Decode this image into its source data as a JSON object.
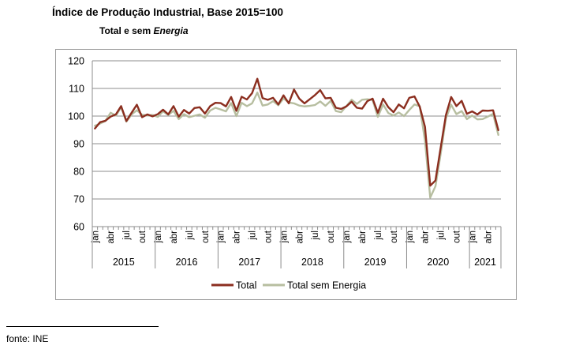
{
  "header": {
    "title": "Índice de Produção Industrial, Base 2015=100",
    "subtitle_plain": "Total e sem",
    "subtitle_italic": "Energia"
  },
  "footer": {
    "source": "fonte: INE"
  },
  "chart_data": {
    "type": "line",
    "title": "Índice de Produção Industrial, Base 2015=100",
    "subtitle": "Total e sem Energia",
    "x": [
      "2015-01",
      "2015-02",
      "2015-03",
      "2015-04",
      "2015-05",
      "2015-06",
      "2015-07",
      "2015-08",
      "2015-09",
      "2015-10",
      "2015-11",
      "2015-12",
      "2016-01",
      "2016-02",
      "2016-03",
      "2016-04",
      "2016-05",
      "2016-06",
      "2016-07",
      "2016-08",
      "2016-09",
      "2016-10",
      "2016-11",
      "2016-12",
      "2017-01",
      "2017-02",
      "2017-03",
      "2017-04",
      "2017-05",
      "2017-06",
      "2017-07",
      "2017-08",
      "2017-09",
      "2017-10",
      "2017-11",
      "2017-12",
      "2018-01",
      "2018-02",
      "2018-03",
      "2018-04",
      "2018-05",
      "2018-06",
      "2018-07",
      "2018-08",
      "2018-09",
      "2018-10",
      "2018-11",
      "2018-12",
      "2019-01",
      "2019-02",
      "2019-03",
      "2019-04",
      "2019-05",
      "2019-06",
      "2019-07",
      "2019-08",
      "2019-09",
      "2019-10",
      "2019-11",
      "2019-12",
      "2020-01",
      "2020-02",
      "2020-03",
      "2020-04",
      "2020-05",
      "2020-06",
      "2020-07",
      "2020-08",
      "2020-09",
      "2020-10",
      "2020-11",
      "2020-12",
      "2021-01",
      "2021-02",
      "2021-03",
      "2021-04",
      "2021-05",
      "2021-06"
    ],
    "x_tick_labels": [
      "jan",
      "abr",
      "jul",
      "out"
    ],
    "year_labels": [
      "2015",
      "2016",
      "2017",
      "2018",
      "2019",
      "2020",
      "2021"
    ],
    "ylim": [
      60,
      120
    ],
    "yticks": [
      60,
      70,
      80,
      90,
      100,
      110,
      120
    ],
    "grid": true,
    "legend": "bottom",
    "series": [
      {
        "name": "Total",
        "color": "#8b2e1f",
        "values": [
          95.5,
          97.8,
          98.3,
          99.8,
          100.6,
          103.6,
          98.2,
          101.2,
          104.1,
          99.6,
          100.6,
          99.9,
          100.7,
          102.3,
          100.6,
          103.6,
          99.8,
          102.2,
          100.9,
          102.9,
          103.2,
          100.9,
          103.6,
          104.8,
          104.7,
          103.5,
          106.9,
          101.9,
          107.0,
          106.0,
          108.3,
          113.5,
          106.5,
          105.9,
          106.6,
          104.2,
          107.5,
          104.6,
          109.6,
          106.3,
          104.6,
          106.1,
          107.6,
          109.4,
          106.4,
          106.6,
          103.0,
          102.6,
          103.5,
          105.2,
          103.0,
          102.7,
          105.4,
          106.3,
          101.2,
          106.3,
          103.2,
          101.4,
          104.2,
          102.8,
          106.6,
          107.1,
          103.4,
          96.1,
          74.8,
          76.7,
          88.6,
          100.4,
          106.9,
          103.6,
          105.5,
          100.8,
          101.7,
          100.6,
          102.0,
          101.9,
          102.1,
          94.9
        ]
      },
      {
        "name": "Total sem Energia",
        "color": "#b7bea0",
        "values": [
          96.5,
          97.3,
          98.2,
          101.2,
          100.2,
          103.2,
          98.0,
          100.6,
          102.1,
          100.5,
          100.2,
          100.4,
          99.7,
          101.7,
          100.4,
          101.9,
          98.9,
          100.7,
          99.6,
          100.1,
          100.6,
          99.4,
          102.0,
          103.0,
          102.4,
          101.7,
          104.7,
          100.0,
          104.8,
          103.6,
          104.6,
          108.5,
          103.8,
          104.2,
          105.4,
          103.9,
          106.4,
          104.9,
          104.6,
          103.8,
          103.5,
          103.7,
          104.0,
          105.3,
          103.7,
          105.5,
          101.8,
          101.4,
          103.6,
          105.9,
          104.4,
          105.9,
          106.1,
          105.8,
          99.7,
          104.2,
          101.1,
          100.2,
          101.3,
          100.0,
          102.2,
          104.2,
          103.5,
          91.1,
          70.5,
          74.6,
          86.4,
          99.2,
          104.1,
          100.7,
          101.8,
          98.9,
          100.2,
          98.8,
          98.9,
          99.8,
          100.8,
          93.2
        ]
      }
    ]
  }
}
